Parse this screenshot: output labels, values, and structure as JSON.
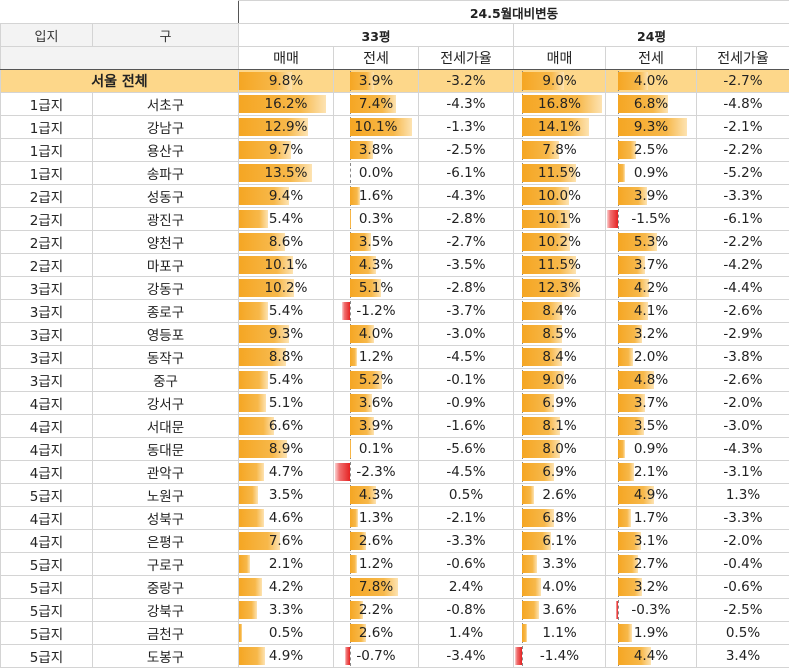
{
  "header": {
    "period": "24.5월대비변동",
    "col_location": "입지",
    "col_district": "구",
    "group_33": "33평",
    "group_24": "24평",
    "col_sale": "매매",
    "col_jeonse": "전세",
    "col_ratio": "전세가율",
    "seoul_label": "서울 전체"
  },
  "colors": {
    "positive": "#f5a623",
    "negative": "#e52222",
    "seoul_row": "#fdd78a"
  },
  "seoul": {
    "s33": "9.8%",
    "j33": "3.9%",
    "r33": "-3.2%",
    "s24": "9.0%",
    "j24": "4.0%",
    "r24": "-2.7%",
    "n_s33": 9.8,
    "n_j33": 3.9,
    "n_s24": 9.0,
    "n_j24": 4.0
  },
  "rows": [
    {
      "loc": "1급지",
      "gu": "서초구",
      "s33": "16.2%",
      "j33": "7.4%",
      "r33": "-4.3%",
      "s24": "16.8%",
      "j24": "6.8%",
      "r24": "-4.8%",
      "n_s33": 16.2,
      "n_j33": 7.4,
      "n_s24": 16.8,
      "n_j24": 6.8
    },
    {
      "loc": "1급지",
      "gu": "강남구",
      "s33": "12.9%",
      "j33": "10.1%",
      "r33": "-1.3%",
      "s24": "14.1%",
      "j24": "9.3%",
      "r24": "-2.1%",
      "n_s33": 12.9,
      "n_j33": 10.1,
      "n_s24": 14.1,
      "n_j24": 9.3
    },
    {
      "loc": "1급지",
      "gu": "용산구",
      "s33": "9.7%",
      "j33": "3.8%",
      "r33": "-2.5%",
      "s24": "7.8%",
      "j24": "2.5%",
      "r24": "-2.2%",
      "n_s33": 9.7,
      "n_j33": 3.8,
      "n_s24": 7.8,
      "n_j24": 2.5
    },
    {
      "loc": "1급지",
      "gu": "송파구",
      "s33": "13.5%",
      "j33": "0.0%",
      "r33": "-6.1%",
      "s24": "11.5%",
      "j24": "0.9%",
      "r24": "-5.2%",
      "n_s33": 13.5,
      "n_j33": 0.0,
      "n_s24": 11.5,
      "n_j24": 0.9
    },
    {
      "loc": "2급지",
      "gu": "성동구",
      "s33": "9.4%",
      "j33": "1.6%",
      "r33": "-4.3%",
      "s24": "10.0%",
      "j24": "3.9%",
      "r24": "-3.3%",
      "n_s33": 9.4,
      "n_j33": 1.6,
      "n_s24": 10.0,
      "n_j24": 3.9
    },
    {
      "loc": "2급지",
      "gu": "광진구",
      "s33": "5.4%",
      "j33": "0.3%",
      "r33": "-2.8%",
      "s24": "10.1%",
      "j24": "-1.5%",
      "r24": "-6.1%",
      "n_s33": 5.4,
      "n_j33": 0.3,
      "n_s24": 10.1,
      "n_j24": -1.5
    },
    {
      "loc": "2급지",
      "gu": "양천구",
      "s33": "8.6%",
      "j33": "3.5%",
      "r33": "-2.7%",
      "s24": "10.2%",
      "j24": "5.3%",
      "r24": "-2.2%",
      "n_s33": 8.6,
      "n_j33": 3.5,
      "n_s24": 10.2,
      "n_j24": 5.3
    },
    {
      "loc": "2급지",
      "gu": "마포구",
      "s33": "10.1%",
      "j33": "4.3%",
      "r33": "-3.5%",
      "s24": "11.5%",
      "j24": "3.7%",
      "r24": "-4.2%",
      "n_s33": 10.1,
      "n_j33": 4.3,
      "n_s24": 11.5,
      "n_j24": 3.7
    },
    {
      "loc": "3급지",
      "gu": "강동구",
      "s33": "10.2%",
      "j33": "5.1%",
      "r33": "-2.8%",
      "s24": "12.3%",
      "j24": "4.2%",
      "r24": "-4.4%",
      "n_s33": 10.2,
      "n_j33": 5.1,
      "n_s24": 12.3,
      "n_j24": 4.2
    },
    {
      "loc": "3급지",
      "gu": "종로구",
      "s33": "5.4%",
      "j33": "-1.2%",
      "r33": "-3.7%",
      "s24": "8.4%",
      "j24": "4.1%",
      "r24": "-2.6%",
      "n_s33": 5.4,
      "n_j33": -1.2,
      "n_s24": 8.4,
      "n_j24": 4.1
    },
    {
      "loc": "3급지",
      "gu": "영등포",
      "s33": "9.3%",
      "j33": "4.0%",
      "r33": "-3.0%",
      "s24": "8.5%",
      "j24": "3.2%",
      "r24": "-2.9%",
      "n_s33": 9.3,
      "n_j33": 4.0,
      "n_s24": 8.5,
      "n_j24": 3.2
    },
    {
      "loc": "3급지",
      "gu": "동작구",
      "s33": "8.8%",
      "j33": "1.2%",
      "r33": "-4.5%",
      "s24": "8.4%",
      "j24": "2.0%",
      "r24": "-3.8%",
      "n_s33": 8.8,
      "n_j33": 1.2,
      "n_s24": 8.4,
      "n_j24": 2.0
    },
    {
      "loc": "3급지",
      "gu": "중구",
      "s33": "5.4%",
      "j33": "5.2%",
      "r33": "-0.1%",
      "s24": "9.0%",
      "j24": "4.8%",
      "r24": "-2.6%",
      "n_s33": 5.4,
      "n_j33": 5.2,
      "n_s24": 9.0,
      "n_j24": 4.8
    },
    {
      "loc": "4급지",
      "gu": "강서구",
      "s33": "5.1%",
      "j33": "3.6%",
      "r33": "-0.9%",
      "s24": "6.9%",
      "j24": "3.7%",
      "r24": "-2.0%",
      "n_s33": 5.1,
      "n_j33": 3.6,
      "n_s24": 6.9,
      "n_j24": 3.7
    },
    {
      "loc": "4급지",
      "gu": "서대문",
      "s33": "6.6%",
      "j33": "3.9%",
      "r33": "-1.6%",
      "s24": "8.1%",
      "j24": "3.5%",
      "r24": "-3.0%",
      "n_s33": 6.6,
      "n_j33": 3.9,
      "n_s24": 8.1,
      "n_j24": 3.5
    },
    {
      "loc": "4급지",
      "gu": "동대문",
      "s33": "8.9%",
      "j33": "0.1%",
      "r33": "-5.6%",
      "s24": "8.0%",
      "j24": "0.9%",
      "r24": "-4.3%",
      "n_s33": 8.9,
      "n_j33": 0.1,
      "n_s24": 8.0,
      "n_j24": 0.9
    },
    {
      "loc": "4급지",
      "gu": "관악구",
      "s33": "4.7%",
      "j33": "-2.3%",
      "r33": "-4.5%",
      "s24": "6.9%",
      "j24": "2.1%",
      "r24": "-3.1%",
      "n_s33": 4.7,
      "n_j33": -2.3,
      "n_s24": 6.9,
      "n_j24": 2.1
    },
    {
      "loc": "5급지",
      "gu": "노원구",
      "s33": "3.5%",
      "j33": "4.3%",
      "r33": "0.5%",
      "s24": "2.6%",
      "j24": "4.9%",
      "r24": "1.3%",
      "n_s33": 3.5,
      "n_j33": 4.3,
      "n_s24": 2.6,
      "n_j24": 4.9
    },
    {
      "loc": "4급지",
      "gu": "성북구",
      "s33": "4.6%",
      "j33": "1.3%",
      "r33": "-2.1%",
      "s24": "6.8%",
      "j24": "1.7%",
      "r24": "-3.3%",
      "n_s33": 4.6,
      "n_j33": 1.3,
      "n_s24": 6.8,
      "n_j24": 1.7
    },
    {
      "loc": "4급지",
      "gu": "은평구",
      "s33": "7.6%",
      "j33": "2.6%",
      "r33": "-3.3%",
      "s24": "6.1%",
      "j24": "3.1%",
      "r24": "-2.0%",
      "n_s33": 7.6,
      "n_j33": 2.6,
      "n_s24": 6.1,
      "n_j24": 3.1
    },
    {
      "loc": "5급지",
      "gu": "구로구",
      "s33": "2.1%",
      "j33": "1.2%",
      "r33": "-0.6%",
      "s24": "3.3%",
      "j24": "2.7%",
      "r24": "-0.4%",
      "n_s33": 2.1,
      "n_j33": 1.2,
      "n_s24": 3.3,
      "n_j24": 2.7
    },
    {
      "loc": "5급지",
      "gu": "중랑구",
      "s33": "4.2%",
      "j33": "7.8%",
      "r33": "2.4%",
      "s24": "4.0%",
      "j24": "3.2%",
      "r24": "-0.6%",
      "n_s33": 4.2,
      "n_j33": 7.8,
      "n_s24": 4.0,
      "n_j24": 3.2
    },
    {
      "loc": "5급지",
      "gu": "강북구",
      "s33": "3.3%",
      "j33": "2.2%",
      "r33": "-0.8%",
      "s24": "3.6%",
      "j24": "-0.3%",
      "r24": "-2.5%",
      "n_s33": 3.3,
      "n_j33": 2.2,
      "n_s24": 3.6,
      "n_j24": -0.3
    },
    {
      "loc": "5급지",
      "gu": "금천구",
      "s33": "0.5%",
      "j33": "2.6%",
      "r33": "1.4%",
      "s24": "1.1%",
      "j24": "1.9%",
      "r24": "0.5%",
      "n_s33": 0.5,
      "n_j33": 2.6,
      "n_s24": 1.1,
      "n_j24": 1.9
    },
    {
      "loc": "5급지",
      "gu": "도봉구",
      "s33": "4.9%",
      "j33": "-0.7%",
      "r33": "-3.4%",
      "s24": "-1.4%",
      "j24": "4.4%",
      "r24": "3.4%",
      "n_s33": 4.9,
      "n_j33": -0.7,
      "n_s24": -1.4,
      "n_j24": 4.4
    }
  ]
}
